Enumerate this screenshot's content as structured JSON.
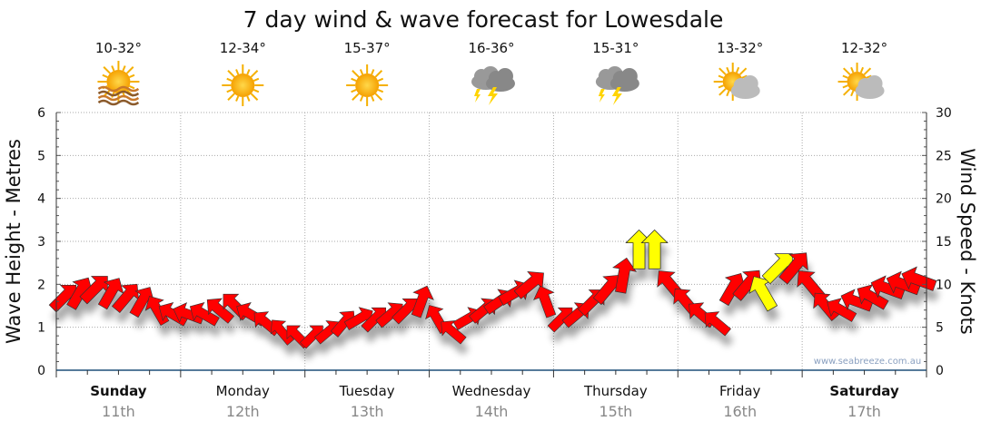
{
  "chart_data": {
    "type": "scatter",
    "title": "7 day wind & wave forecast for Lowesdale",
    "ylabel": "Wave Height - Metres",
    "y2label": "Wind Speed - Knots",
    "ylim": [
      0,
      6
    ],
    "y2lim": [
      0,
      30
    ],
    "yticks": [
      "0",
      "1",
      "2",
      "3",
      "4",
      "5",
      "6"
    ],
    "y2ticks": [
      "0",
      "5",
      "10",
      "15",
      "20",
      "25",
      "30"
    ],
    "watermark": "www.seabreeze.com.au",
    "days": [
      {
        "name": "Sunday",
        "date": "11th",
        "temp": "10-32°",
        "icon": "sun-haze-icon",
        "bold": true
      },
      {
        "name": "Monday",
        "date": "12th",
        "temp": "12-34°",
        "icon": "sun-icon",
        "bold": false
      },
      {
        "name": "Tuesday",
        "date": "13th",
        "temp": "15-37°",
        "icon": "sun-icon",
        "bold": false
      },
      {
        "name": "Wednesday",
        "date": "14th",
        "temp": "16-36°",
        "icon": "thunderstorm-icon",
        "bold": false
      },
      {
        "name": "Thursday",
        "date": "15th",
        "temp": "15-31°",
        "icon": "thunderstorm-icon",
        "bold": false
      },
      {
        "name": "Friday",
        "date": "16th",
        "temp": "13-32°",
        "icon": "partly-cloudy-icon",
        "bold": false
      },
      {
        "name": "Saturday",
        "date": "17th",
        "temp": "12-32°",
        "icon": "partly-cloudy-icon",
        "bold": true
      }
    ],
    "wave_height": [
      1.7,
      1.8,
      1.9,
      1.8,
      1.7,
      1.6,
      1.4,
      1.3,
      1.3,
      1.3,
      1.4,
      1.5,
      1.3,
      1.1,
      0.9,
      0.8,
      0.8,
      0.9,
      1.1,
      1.2,
      1.2,
      1.3,
      1.4,
      1.6,
      1.2,
      0.9,
      1.2,
      1.4,
      1.6,
      1.8,
      2.0,
      1.6,
      1.2,
      1.3,
      1.6,
      1.9,
      2.2,
      2.8,
      2.8,
      2.0,
      1.6,
      1.3,
      1.1,
      1.9,
      2.0,
      1.8,
      2.4,
      2.4,
      2.0,
      1.5,
      1.4,
      1.6,
      1.7,
      1.9,
      2.0,
      2.1
    ],
    "arrow_direction_deg": [
      45,
      60,
      45,
      60,
      50,
      60,
      120,
      150,
      160,
      150,
      140,
      135,
      150,
      140,
      130,
      135,
      45,
      40,
      50,
      30,
      45,
      40,
      45,
      70,
      120,
      140,
      30,
      40,
      35,
      30,
      40,
      110,
      45,
      40,
      45,
      50,
      80,
      90,
      90,
      130,
      130,
      140,
      140,
      60,
      50,
      120,
      45,
      50,
      130,
      130,
      150,
      160,
      150,
      160,
      160,
      160
    ],
    "wind_knots": [
      9,
      10,
      10,
      9,
      9,
      8,
      7,
      7,
      7,
      7,
      7,
      8,
      7,
      6,
      5,
      4,
      4,
      5,
      6,
      6,
      6,
      7,
      7,
      8,
      6,
      5,
      6,
      7,
      8,
      9,
      10,
      8,
      6,
      7,
      8,
      10,
      11,
      15,
      15,
      10,
      8,
      7,
      6,
      10,
      11,
      13,
      13,
      12,
      10,
      8,
      7,
      8,
      9,
      10,
      10,
      11
    ],
    "colors": {
      "arrow": "#ff0000",
      "arrow_strong": "#ffff00",
      "axis": "#1f4e79"
    }
  }
}
